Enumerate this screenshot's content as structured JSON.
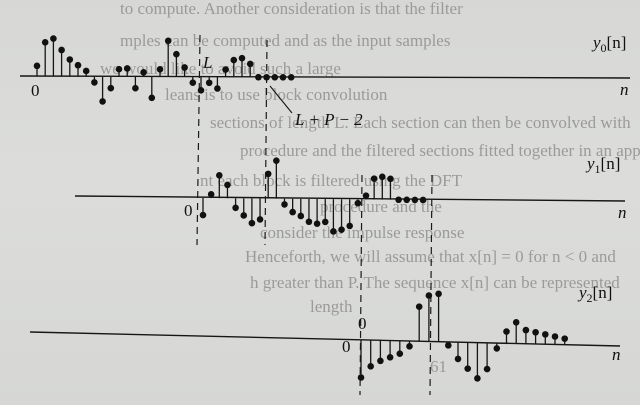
{
  "background_lines": [
    "to compute. Another consideration is that the filter",
    "mples can be computed and as the input samples",
    "we would like to avoid such a large",
    "leans is to use block convolution",
    "sections of length L. Each section can then be convolved with",
    "procedure and the filtered sections fitted together in an appropriate",
    "nt each block is filtered using the DFT",
    "procedure and the",
    "consider the impulse response",
    "Henceforth, we will assume that x[n] = 0 for n < 0 and",
    "h greater than P. The sequence x[n] can be represented",
    "length",
    "61"
  ],
  "plots": {
    "y0": {
      "label": "y",
      "subscript": "0",
      "arg": "[n]",
      "axis_label": "n",
      "origin_label": "0",
      "values": [
        0.28,
        0.9,
        1.0,
        0.7,
        0.45,
        0.3,
        0.15,
        -0.15,
        -0.65,
        -0.3,
        0.2,
        0.22,
        -0.3,
        0.12,
        -0.55,
        0.2,
        0.95,
        0.6,
        0.25,
        -0.15,
        -0.35,
        -0.15,
        -0.3,
        0.2,
        0.45,
        0.5,
        0.35,
        0.0,
        0.0,
        0.0,
        0.0,
        0.0
      ]
    },
    "y1": {
      "label": "y",
      "subscript": "1",
      "arg": "[n]",
      "axis_label": "n",
      "origin_label": "0",
      "values": [
        -0.45,
        0.1,
        0.6,
        0.35,
        -0.25,
        -0.45,
        -0.65,
        -0.55,
        0.65,
        1.0,
        -0.15,
        -0.35,
        -0.45,
        -0.6,
        -0.65,
        -0.6,
        -0.85,
        -0.8,
        -0.7,
        -0.1,
        0.1,
        0.55,
        0.6,
        0.55,
        0.0,
        0.0,
        0.0,
        0.0
      ]
    },
    "y2": {
      "label": "y",
      "subscript": "2",
      "arg": "[n]",
      "axis_label": "n",
      "origin_label": "0",
      "values": [
        -1.0,
        -0.7,
        -0.55,
        -0.45,
        -0.35,
        -0.15,
        0.9,
        1.2,
        1.25,
        -0.1,
        -0.45,
        -0.7,
        -0.95,
        -0.7,
        -0.15,
        0.3,
        0.55,
        0.35,
        0.3,
        0.25,
        0.2,
        0.15
      ]
    }
  },
  "annotations": {
    "L": "L",
    "LP2": "L + P − 2"
  }
}
